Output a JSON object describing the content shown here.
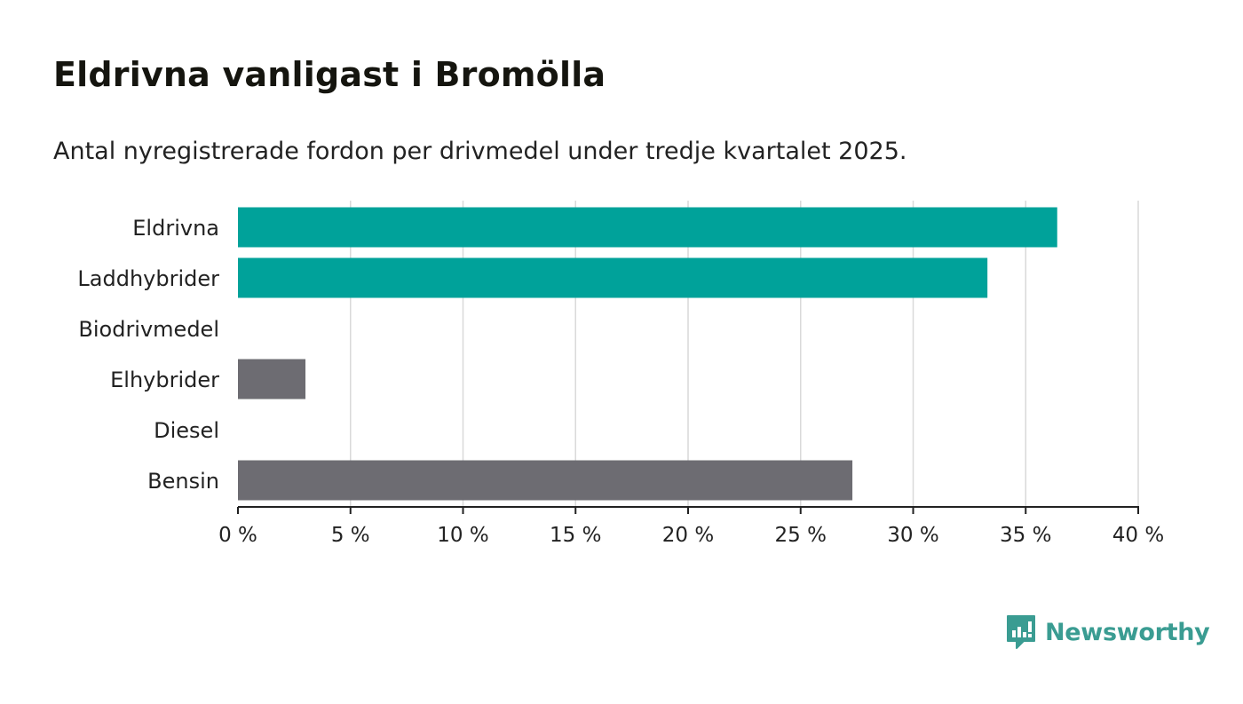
{
  "header": {
    "title": "Eldrivna vanligast i Bromölla",
    "subtitle": "Antal nyregistrerade fordon per drivmedel under tredje kvartalet 2025."
  },
  "brand": {
    "name": "Newsworthy",
    "color": "#3a9c92",
    "icon": "bar-chart-speech-bubble-icon"
  },
  "colors": {
    "electric": "#00a29a",
    "fossil": "#6d6c72",
    "grid": "#d9d9d9",
    "axis": "#222222"
  },
  "chart_data": {
    "type": "bar",
    "orientation": "horizontal",
    "categories": [
      "Eldrivna",
      "Laddhybrider",
      "Biodrivmedel",
      "Elhybrider",
      "Diesel",
      "Bensin"
    ],
    "values": [
      36.4,
      33.3,
      0,
      3.0,
      0,
      27.3
    ],
    "bar_colors": [
      "#00a29a",
      "#00a29a",
      "#6d6c72",
      "#6d6c72",
      "#6d6c72",
      "#6d6c72"
    ],
    "xlim": [
      0,
      40
    ],
    "xticks": [
      0,
      5,
      10,
      15,
      20,
      25,
      30,
      35,
      40
    ],
    "xtick_labels": [
      "0 %",
      "5 %",
      "10 %",
      "15 %",
      "20 %",
      "25 %",
      "30 %",
      "35 %",
      "40 %"
    ],
    "grid": true,
    "legend": "none"
  }
}
